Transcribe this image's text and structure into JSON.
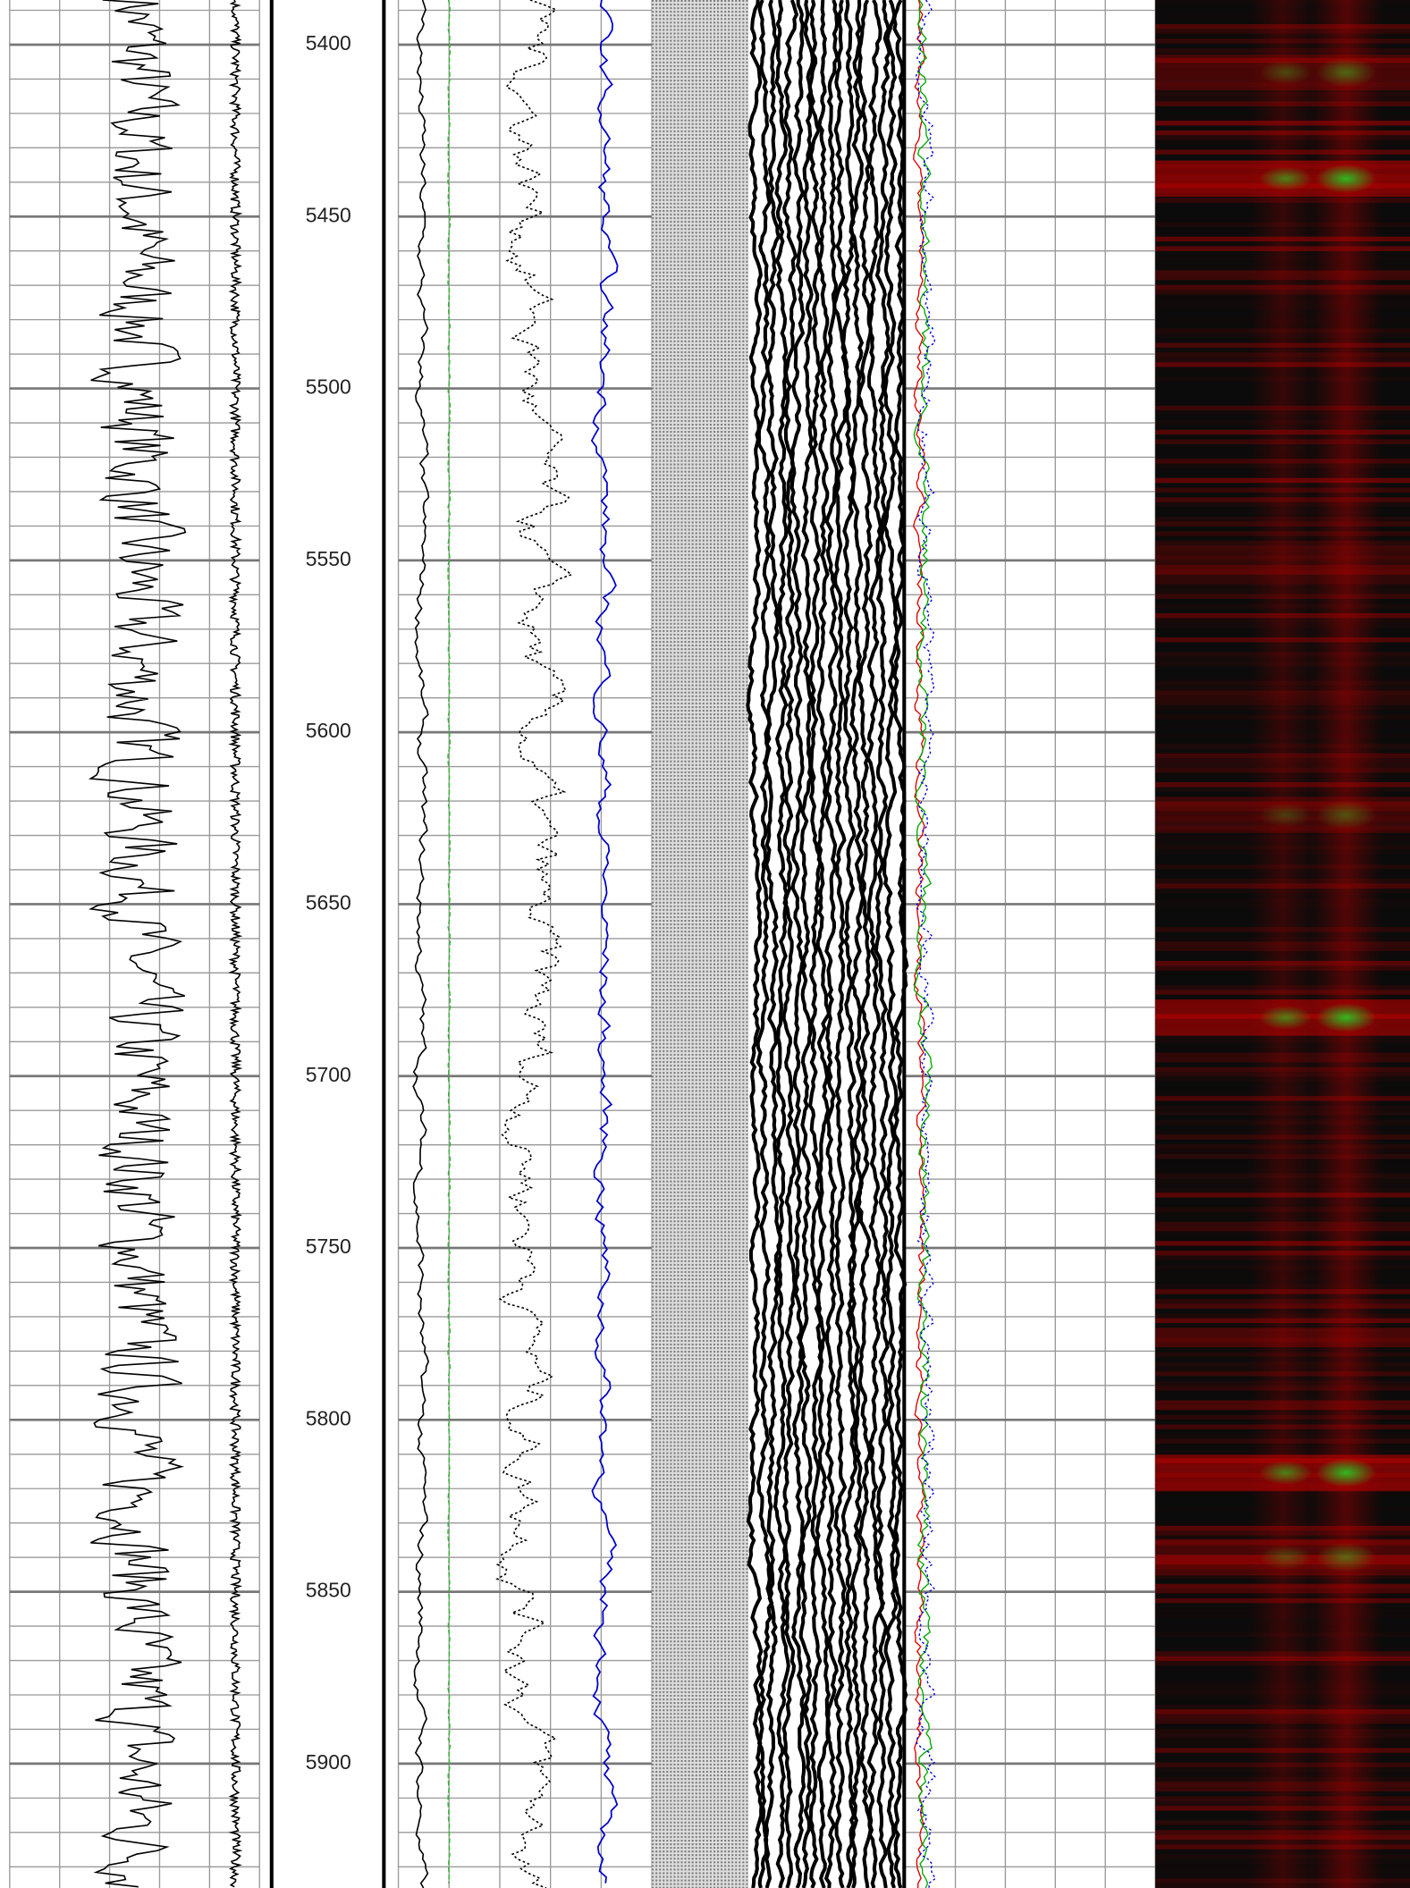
{
  "depth_track": {
    "labels": [
      5400,
      5450,
      5500,
      5550,
      5600,
      5650,
      5700,
      5750,
      5800,
      5850,
      5900
    ]
  }
}
